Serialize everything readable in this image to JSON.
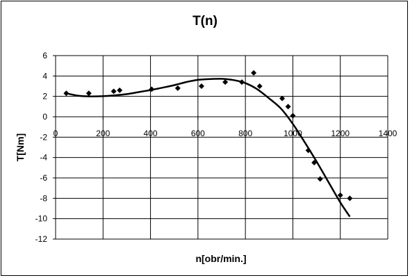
{
  "chart_data": {
    "type": "scatter",
    "title": "T(n)",
    "xlabel": "n[obr/min.]",
    "ylabel": "T[Nm]",
    "xlim": [
      0,
      1400
    ],
    "ylim": [
      -12,
      6
    ],
    "x_ticks": [
      0,
      200,
      400,
      600,
      800,
      1000,
      1200,
      1400
    ],
    "y_ticks": [
      6,
      4,
      2,
      0,
      -2,
      -4,
      -6,
      -8,
      -10,
      -12
    ],
    "x_tick_labels": [
      "0",
      "200",
      "400",
      "600",
      "800",
      "1000",
      "1200",
      "1400"
    ],
    "y_tick_labels": [
      "6",
      "4",
      "2",
      "0",
      "-2",
      "-4",
      "-6",
      "-8",
      "-10",
      "-12"
    ],
    "grid": true,
    "legend": "none",
    "series": [
      {
        "kind": "points",
        "marker": "diamond",
        "x": [
          45,
          140,
          245,
          270,
          405,
          515,
          615,
          715,
          785,
          835,
          860,
          955,
          980,
          1000,
          1065,
          1090,
          1115,
          1200,
          1240
        ],
        "y": [
          2.3,
          2.3,
          2.5,
          2.6,
          2.7,
          2.8,
          3.0,
          3.4,
          3.4,
          4.3,
          3.0,
          1.8,
          1.0,
          0.1,
          -3.3,
          -4.5,
          -6.1,
          -7.7,
          -8.0
        ]
      },
      {
        "kind": "trendline",
        "x": [
          45,
          100,
          150,
          200,
          250,
          300,
          350,
          400,
          450,
          500,
          550,
          600,
          650,
          700,
          750,
          800,
          850,
          900,
          950,
          1000,
          1050,
          1100,
          1150,
          1200,
          1240
        ],
        "y": [
          2.3,
          2.05,
          2.0,
          2.02,
          2.1,
          2.22,
          2.42,
          2.62,
          2.85,
          3.1,
          3.4,
          3.62,
          3.7,
          3.72,
          3.6,
          3.3,
          2.7,
          1.8,
          0.8,
          -0.7,
          -2.5,
          -4.4,
          -6.4,
          -8.4,
          -9.8
        ]
      }
    ]
  }
}
